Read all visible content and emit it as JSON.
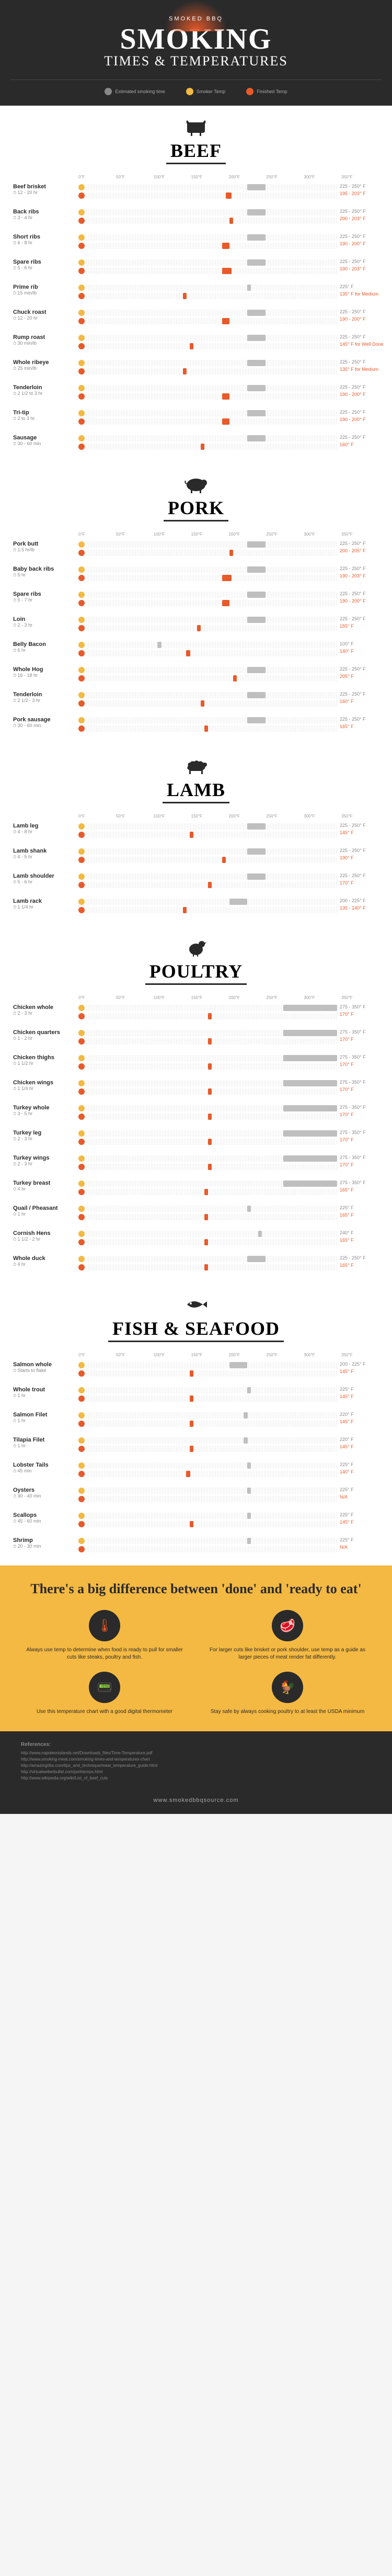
{
  "header": {
    "brand": "SMOKED BBQ",
    "title": "SMOKING",
    "subtitle": "TIMES & TEMPERATURES",
    "legend": [
      {
        "label": "Estimated smoking time",
        "class": "lc-time"
      },
      {
        "label": "Smoker Temp",
        "class": "lc-smoker"
      },
      {
        "label": "Finished Temp",
        "class": "lc-finished"
      }
    ]
  },
  "axis": {
    "min": 0,
    "max": 350,
    "step": 50,
    "labels": [
      "0°F",
      "50°F",
      "100°F",
      "150°F",
      "200°F",
      "250°F",
      "300°F",
      "350°F"
    ]
  },
  "colors": {
    "smoker_bar": "#bfbfbf",
    "finished_bar": "#e85a2a",
    "smoker_dot": "#f4b942",
    "finished_dot": "#e85a2a",
    "bg": "#ffffff",
    "text": "#2a2a2a"
  },
  "categories": [
    {
      "name": "BEEF",
      "icon": "cow",
      "items": [
        {
          "name": "Beef brisket",
          "time": "12 - 20 hr",
          "smoker": [
            225,
            250
          ],
          "smoker_label": "225 - 250° F",
          "finished": [
            195,
            203
          ],
          "finished_label": "195 - 203° F"
        },
        {
          "name": "Back ribs",
          "time": "3 - 4 hr",
          "smoker": [
            225,
            250
          ],
          "smoker_label": "225 - 250° F",
          "finished": [
            200,
            203
          ],
          "finished_label": "200 - 203° F"
        },
        {
          "name": "Short ribs",
          "time": "6 - 8 hr",
          "smoker": [
            225,
            250
          ],
          "smoker_label": "225 - 250° F",
          "finished": [
            190,
            200
          ],
          "finished_label": "190 - 200° F"
        },
        {
          "name": "Spare ribs",
          "time": "5 - 6 hr",
          "smoker": [
            225,
            250
          ],
          "smoker_label": "225 - 250° F",
          "finished": [
            190,
            203
          ],
          "finished_label": "190 - 203° F"
        },
        {
          "name": "Prime rib",
          "time": "15 min/lb",
          "smoker": [
            225,
            225
          ],
          "smoker_label": "225° F",
          "finished": [
            135,
            135
          ],
          "finished_label": "135° F for Medium"
        },
        {
          "name": "Chuck roast",
          "time": "12 - 20 hr",
          "smoker": [
            225,
            250
          ],
          "smoker_label": "225 - 250° F",
          "finished": [
            190,
            200
          ],
          "finished_label": "190 - 200° F"
        },
        {
          "name": "Rump roast",
          "time": "30 min/lb",
          "smoker": [
            225,
            250
          ],
          "smoker_label": "225 - 250° F",
          "finished": [
            145,
            145
          ],
          "finished_label": "145° F for Well Done"
        },
        {
          "name": "Whole ribeye",
          "time": "25 min/lb",
          "smoker": [
            225,
            250
          ],
          "smoker_label": "225 - 250° F",
          "finished": [
            135,
            135
          ],
          "finished_label": "135° F for Medium"
        },
        {
          "name": "Tenderloin",
          "time": "2 1/2 to 3 hr",
          "smoker": [
            225,
            250
          ],
          "smoker_label": "225 - 250° F",
          "finished": [
            190,
            200
          ],
          "finished_label": "190 - 200° F"
        },
        {
          "name": "Tri-tip",
          "time": "2 to 3 hr",
          "smoker": [
            225,
            250
          ],
          "smoker_label": "225 - 250° F",
          "finished": [
            190,
            200
          ],
          "finished_label": "190 - 200° F"
        },
        {
          "name": "Sausage",
          "time": "30 - 60 min",
          "smoker": [
            225,
            250
          ],
          "smoker_label": "225 - 250° F",
          "finished": [
            160,
            160
          ],
          "finished_label": "160° F"
        }
      ]
    },
    {
      "name": "PORK",
      "icon": "pig",
      "items": [
        {
          "name": "Pork butt",
          "time": "1.5 hr/lb",
          "smoker": [
            225,
            250
          ],
          "smoker_label": "225 - 250° F",
          "finished": [
            200,
            205
          ],
          "finished_label": "200 - 205° F"
        },
        {
          "name": "Baby back ribs",
          "time": "5 hr",
          "smoker": [
            225,
            250
          ],
          "smoker_label": "225 - 250° F",
          "finished": [
            190,
            203
          ],
          "finished_label": "190 - 203° F"
        },
        {
          "name": "Spare ribs",
          "time": "5 - 7 hr",
          "smoker": [
            225,
            250
          ],
          "smoker_label": "225 - 250° F",
          "finished": [
            190,
            200
          ],
          "finished_label": "190 - 200° F"
        },
        {
          "name": "Loin",
          "time": "2 - 3 hr",
          "smoker": [
            225,
            250
          ],
          "smoker_label": "225 - 250° F",
          "finished": [
            155,
            155
          ],
          "finished_label": "155° F"
        },
        {
          "name": "Belly Bacon",
          "time": "6 hr",
          "smoker": [
            100,
            100
          ],
          "smoker_label": "100° F",
          "finished": [
            140,
            140
          ],
          "finished_label": "140° F"
        },
        {
          "name": "Whole Hog",
          "time": "16 - 18 hr",
          "smoker": [
            225,
            250
          ],
          "smoker_label": "225 - 250° F",
          "finished": [
            205,
            205
          ],
          "finished_label": "205° F"
        },
        {
          "name": "Tenderloin",
          "time": "2 1/2 - 3 hr",
          "smoker": [
            225,
            250
          ],
          "smoker_label": "225 - 250° F",
          "finished": [
            160,
            160
          ],
          "finished_label": "160° F"
        },
        {
          "name": "Pork sausage",
          "time": "30 - 60 min",
          "smoker": [
            225,
            250
          ],
          "smoker_label": "225 - 250° F",
          "finished": [
            165,
            165
          ],
          "finished_label": "165° F"
        }
      ]
    },
    {
      "name": "LAMB",
      "icon": "sheep",
      "items": [
        {
          "name": "Lamb leg",
          "time": "4 - 8 hr",
          "smoker": [
            225,
            250
          ],
          "smoker_label": "225 - 250° F",
          "finished": [
            145,
            145
          ],
          "finished_label": "145° F"
        },
        {
          "name": "Lamb shank",
          "time": "4 - 5 hr",
          "smoker": [
            225,
            250
          ],
          "smoker_label": "225 - 250° F",
          "finished": [
            190,
            190
          ],
          "finished_label": "190° F"
        },
        {
          "name": "Lamb shoulder",
          "time": "5 - 6 hr",
          "smoker": [
            225,
            250
          ],
          "smoker_label": "225 - 250° F",
          "finished": [
            170,
            170
          ],
          "finished_label": "170° F"
        },
        {
          "name": "Lamb rack",
          "time": "1 1/4 hr",
          "smoker": [
            200,
            225
          ],
          "smoker_label": "200 - 225° F",
          "finished": [
            135,
            140
          ],
          "finished_label": "135 - 140° F"
        }
      ]
    },
    {
      "name": "POULTRY",
      "icon": "chicken",
      "items": [
        {
          "name": "Chicken whole",
          "time": "2 - 3 hr",
          "smoker": [
            275,
            350
          ],
          "smoker_label": "275 - 350° F",
          "finished": [
            170,
            170
          ],
          "finished_label": "170° F"
        },
        {
          "name": "Chicken quarters",
          "time": "1 - 2 hr",
          "smoker": [
            275,
            350
          ],
          "smoker_label": "275 - 350° F",
          "finished": [
            170,
            170
          ],
          "finished_label": "170° F"
        },
        {
          "name": "Chicken thighs",
          "time": "1 1/2 hr",
          "smoker": [
            275,
            350
          ],
          "smoker_label": "275 - 350° F",
          "finished": [
            170,
            170
          ],
          "finished_label": "170° F"
        },
        {
          "name": "Chicken wings",
          "time": "1 1/4 hr",
          "smoker": [
            275,
            350
          ],
          "smoker_label": "275 - 350° F",
          "finished": [
            170,
            170
          ],
          "finished_label": "170° F"
        },
        {
          "name": "Turkey whole",
          "time": "3 - 5 hr",
          "smoker": [
            275,
            350
          ],
          "smoker_label": "275 - 350° F",
          "finished": [
            170,
            170
          ],
          "finished_label": "170° F"
        },
        {
          "name": "Turkey leg",
          "time": "2 - 3 hr",
          "smoker": [
            275,
            350
          ],
          "smoker_label": "275 - 350° F",
          "finished": [
            170,
            170
          ],
          "finished_label": "170° F"
        },
        {
          "name": "Turkey wings",
          "time": "2 - 3 hr",
          "smoker": [
            275,
            350
          ],
          "smoker_label": "275 - 350° F",
          "finished": [
            170,
            170
          ],
          "finished_label": "170° F"
        },
        {
          "name": "Turkey breast",
          "time": "4 hr",
          "smoker": [
            275,
            350
          ],
          "smoker_label": "275 - 350° F",
          "finished": [
            165,
            165
          ],
          "finished_label": "165° F"
        },
        {
          "name": "Quail / Pheasant",
          "time": "1 hr",
          "smoker": [
            225,
            225
          ],
          "smoker_label": "225° F",
          "finished": [
            165,
            165
          ],
          "finished_label": "165° F"
        },
        {
          "name": "Cornish Hens",
          "time": "1 1/2 - 2 hr",
          "smoker": [
            240,
            240
          ],
          "smoker_label": "240° F",
          "finished": [
            165,
            165
          ],
          "finished_label": "165° F"
        },
        {
          "name": "Whole duck",
          "time": "4 hr",
          "smoker": [
            225,
            250
          ],
          "smoker_label": "225 - 250° F",
          "finished": [
            165,
            165
          ],
          "finished_label": "165° F"
        }
      ]
    },
    {
      "name": "FISH & SEAFOOD",
      "icon": "fish",
      "items": [
        {
          "name": "Salmon whole",
          "time": "Starts to flake",
          "smoker": [
            200,
            225
          ],
          "smoker_label": "200 - 225° F",
          "finished": [
            145,
            145
          ],
          "finished_label": "145° F"
        },
        {
          "name": "Whole trout",
          "time": "1 hr",
          "smoker": [
            225,
            225
          ],
          "smoker_label": "225° F",
          "finished": [
            145,
            145
          ],
          "finished_label": "145° F"
        },
        {
          "name": "Salmon Filet",
          "time": "1 hr",
          "smoker": [
            220,
            220
          ],
          "smoker_label": "220° F",
          "finished": [
            145,
            145
          ],
          "finished_label": "145° F"
        },
        {
          "name": "Tilapia Filet",
          "time": "1 hr",
          "smoker": [
            220,
            220
          ],
          "smoker_label": "220° F",
          "finished": [
            145,
            145
          ],
          "finished_label": "145° F"
        },
        {
          "name": "Lobster Tails",
          "time": "45 min",
          "smoker": [
            225,
            225
          ],
          "smoker_label": "225° F",
          "finished": [
            140,
            140
          ],
          "finished_label": "140° F"
        },
        {
          "name": "Oysters",
          "time": "30 - 40 min",
          "smoker": [
            225,
            225
          ],
          "smoker_label": "225° F",
          "finished": [
            0,
            0
          ],
          "finished_label": "N/A"
        },
        {
          "name": "Scallops",
          "time": "45 - 60 min",
          "smoker": [
            225,
            225
          ],
          "smoker_label": "225° F",
          "finished": [
            145,
            145
          ],
          "finished_label": "145° F"
        },
        {
          "name": "Shrimp",
          "time": "20 - 30 min",
          "smoker": [
            225,
            225
          ],
          "smoker_label": "225° F",
          "finished": [
            0,
            0
          ],
          "finished_label": "N/A"
        }
      ]
    }
  ],
  "footer": {
    "title": "There's a big difference between 'done' and 'ready to eat'",
    "items": [
      {
        "icon": "🌡",
        "text": "Always use temp to determine when food is ready to pull for smaller cuts like steaks, poultry and fish."
      },
      {
        "icon": "🥩",
        "text": "For larger cuts like brisket or pork shoulder, use temp as a guide as larger pieces of meat render fat differently."
      },
      {
        "icon": "📟",
        "text": "Use this temperature chart with a good digital thermometer"
      },
      {
        "icon": "🐓",
        "text": "Stay safe by always cooking poultry to at least the USDA minimum"
      }
    ]
  },
  "refs": {
    "title": "References:",
    "lines": [
      "http://www.napoleonislands.net/Downloads_files/Time-Temperature.pdf",
      "http://www.smoking-meat.com/smoking-times-and-temperatures-chart",
      "http://amazingribs.com/tips_and_technique/meat_temperature_guide.html",
      "http://virtualweberbullet.com/porktemps.html",
      "http://www.wikipedia.org/wiki/List_of_beef_cuts"
    ]
  },
  "site_url": "www.smokedbbqsource.com"
}
